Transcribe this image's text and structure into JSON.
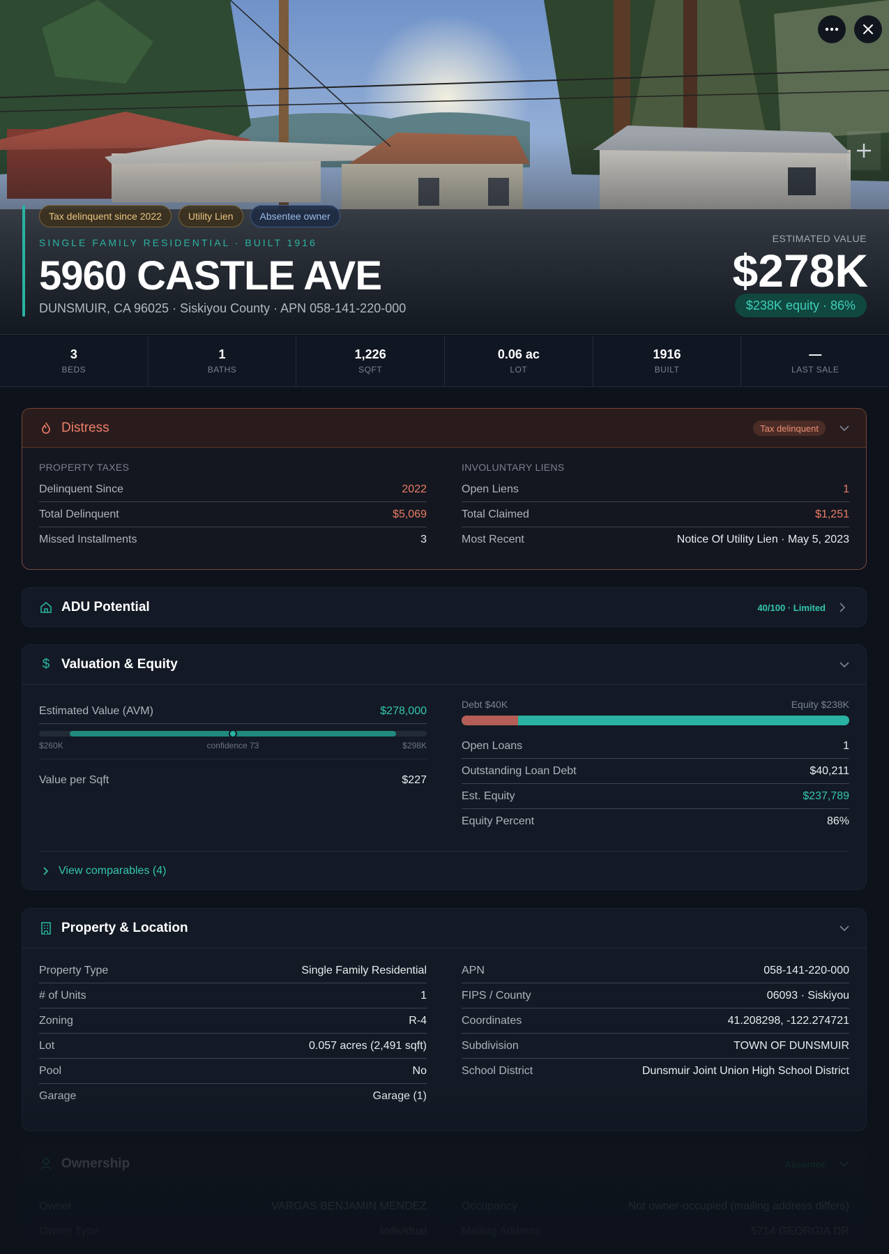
{
  "hero": {
    "tags": [
      "Tax delinquent since 2022",
      "Utility Lien",
      "Absentee owner"
    ],
    "subtype": "SINGLE FAMILY RESIDENTIAL · BUILT 1916",
    "address": "5960 CASTLE AVE",
    "location": "DUNSMUIR, CA 96025 · Siskiyou County · APN 058-141-220-000",
    "est_label": "ESTIMATED VALUE",
    "est_value": "$278K",
    "equity_pill": "$238K equity · 86%",
    "more_icon": "ellipsis-icon",
    "close_icon": "close-icon",
    "zoom_icon": "plus-icon"
  },
  "stats": [
    {
      "value": "3",
      "label": "BEDS"
    },
    {
      "value": "1",
      "label": "BATHS"
    },
    {
      "value": "1,226",
      "label": "SQFT"
    },
    {
      "value": "0.06 ac",
      "label": "LOT"
    },
    {
      "value": "1916",
      "label": "BUILT"
    },
    {
      "value": "—",
      "label": "LAST SALE"
    }
  ],
  "distress": {
    "title": "Distress",
    "badge": "Tax delinquent",
    "left_title": "PROPERTY TAXES",
    "left_rows": [
      {
        "k": "Delinquent Since",
        "v": "2022"
      },
      {
        "k": "Total Delinquent",
        "v": "$5,069"
      },
      {
        "k": "Missed Installments",
        "v": "3"
      }
    ],
    "right_title": "INVOLUNTARY LIENS",
    "right_rows": [
      {
        "k": "Open Liens",
        "v": "1"
      },
      {
        "k": "Total Claimed",
        "v": "$1,251"
      },
      {
        "k": "Most Recent",
        "v": "Notice Of Utility Lien · May 5, 2023"
      }
    ]
  },
  "adu": {
    "title": "ADU Potential",
    "badge": "40/100 · Limited"
  },
  "valuation": {
    "title": "Valuation & Equity",
    "avm_label": "Estimated Value (AVM)",
    "avm_value": "$278,000",
    "range_low": "$260K",
    "range_high": "$298K",
    "confidence": "confidence 73",
    "value_per_sqft_label": "Value per Sqft",
    "value_per_sqft": "$227",
    "debt_label": "Debt $40K",
    "equity_label": "Equity $238K",
    "debt_fraction": 0.145,
    "right_rows": [
      {
        "k": "Open Loans",
        "v": "1"
      },
      {
        "k": "Outstanding Loan Debt",
        "v": "$40,211"
      },
      {
        "k": "Est. Equity",
        "v": "$237,789"
      },
      {
        "k": "Equity Percent",
        "v": "86%"
      }
    ],
    "comparables": "View comparables (4)"
  },
  "property": {
    "title": "Property & Location",
    "left_rows": [
      {
        "k": "Property Type",
        "v": "Single Family Residential"
      },
      {
        "k": "# of Units",
        "v": "1"
      },
      {
        "k": "Zoning",
        "v": "R-4"
      },
      {
        "k": "Lot",
        "v": "0.057 acres (2,491 sqft)"
      },
      {
        "k": "Pool",
        "v": "No"
      },
      {
        "k": "Garage",
        "v": "Garage (1)"
      }
    ],
    "right_rows": [
      {
        "k": "APN",
        "v": "058-141-220-000"
      },
      {
        "k": "FIPS / County",
        "v": "06093 · Siskiyou"
      },
      {
        "k": "Coordinates",
        "v": "41.208298, -122.274721"
      },
      {
        "k": "Subdivision",
        "v": "TOWN OF DUNSMUIR"
      },
      {
        "k": "School District",
        "v": "Dunsmuir Joint Union High School District"
      }
    ]
  },
  "ownership": {
    "title": "Ownership",
    "badge": "Absentee",
    "left_rows": [
      {
        "k": "Owner",
        "v": "VARGAS BENJAMIN MENDEZ"
      },
      {
        "k": "Owner Type",
        "v": "Individual"
      }
    ],
    "right_rows": [
      {
        "k": "Occupancy",
        "v": "Not owner-occupied (mailing address differs)"
      },
      {
        "k": "Mailing Address",
        "v": "5714 GEORGIA DR"
      }
    ]
  }
}
